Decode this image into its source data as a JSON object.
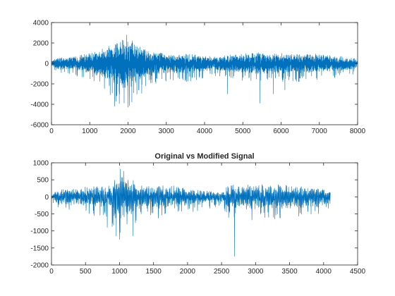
{
  "chart_data": [
    {
      "type": "line",
      "title": "",
      "xlabel": "",
      "ylabel": "",
      "xlim": [
        0,
        8000
      ],
      "ylim": [
        -6000,
        4000
      ],
      "xticks": [
        0,
        1000,
        2000,
        3000,
        4000,
        5000,
        6000,
        7000,
        8000
      ],
      "yticks": [
        -6000,
        -4000,
        -2000,
        0,
        2000,
        4000
      ],
      "grid": false,
      "series_color": "#0072BD",
      "n_samples": 8000,
      "envelope": [
        {
          "x": 0,
          "amp": 250
        },
        {
          "x": 150,
          "amp": 600
        },
        {
          "x": 600,
          "amp": 700
        },
        {
          "x": 1200,
          "amp": 1200
        },
        {
          "x": 1600,
          "amp": 1900
        },
        {
          "x": 1900,
          "amp": 2600
        },
        {
          "x": 2100,
          "amp": 2300
        },
        {
          "x": 2500,
          "amp": 1300
        },
        {
          "x": 3000,
          "amp": 1000
        },
        {
          "x": 3600,
          "amp": 1000
        },
        {
          "x": 4200,
          "amp": 700
        },
        {
          "x": 4800,
          "amp": 900
        },
        {
          "x": 5400,
          "amp": 1100
        },
        {
          "x": 6000,
          "amp": 1000
        },
        {
          "x": 6800,
          "amp": 1000
        },
        {
          "x": 7400,
          "amp": 800
        },
        {
          "x": 7900,
          "amp": 600
        },
        {
          "x": 8000,
          "amp": 300
        }
      ],
      "peaks": [
        {
          "x": 1650,
          "y": -4200
        },
        {
          "x": 1960,
          "y": 2800
        },
        {
          "x": 2000,
          "y": -4300
        },
        {
          "x": 1850,
          "y": 2300
        },
        {
          "x": 2100,
          "y": -3800
        },
        {
          "x": 4600,
          "y": -3000
        },
        {
          "x": 5450,
          "y": -3900
        },
        {
          "x": 5800,
          "y": -3000
        },
        {
          "x": 6100,
          "y": -2600
        }
      ]
    },
    {
      "type": "line",
      "title": "Original vs Modified Signal",
      "xlabel": "",
      "ylabel": "",
      "xlim": [
        0,
        4500
      ],
      "ylim": [
        -2000,
        1000
      ],
      "xticks": [
        0,
        500,
        1000,
        1500,
        2000,
        2500,
        3000,
        3500,
        4000,
        4500
      ],
      "yticks": [
        -2000,
        -1500,
        -1000,
        -500,
        0,
        500,
        1000
      ],
      "grid": false,
      "series_color": "#0072BD",
      "n_samples": 4100,
      "envelope": [
        {
          "x": 0,
          "amp": 60
        },
        {
          "x": 100,
          "amp": 250
        },
        {
          "x": 500,
          "amp": 300
        },
        {
          "x": 850,
          "amp": 350
        },
        {
          "x": 950,
          "amp": 700
        },
        {
          "x": 1150,
          "amp": 600
        },
        {
          "x": 1300,
          "amp": 350
        },
        {
          "x": 1800,
          "amp": 350
        },
        {
          "x": 2100,
          "amp": 250
        },
        {
          "x": 2500,
          "amp": 150
        },
        {
          "x": 2600,
          "amp": 350
        },
        {
          "x": 3000,
          "amp": 400
        },
        {
          "x": 3500,
          "amp": 350
        },
        {
          "x": 4000,
          "amp": 300
        },
        {
          "x": 4100,
          "amp": 150
        }
      ],
      "peaks": [
        {
          "x": 1010,
          "y": 820
        },
        {
          "x": 1060,
          "y": 760
        },
        {
          "x": 1000,
          "y": -1250
        },
        {
          "x": 2690,
          "y": -1750
        },
        {
          "x": 1200,
          "y": -1150
        },
        {
          "x": 820,
          "y": -900
        }
      ]
    }
  ]
}
